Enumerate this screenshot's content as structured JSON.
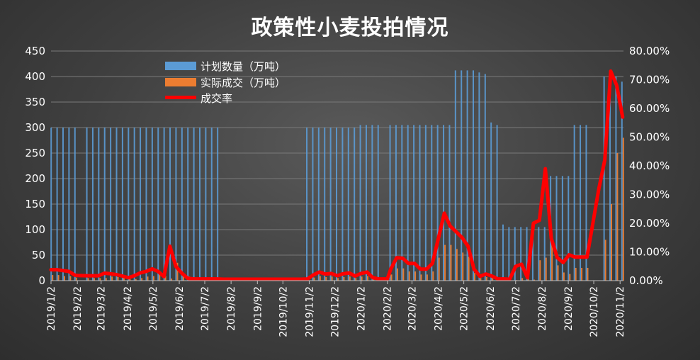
{
  "chart_data": {
    "type": "bar",
    "title": "政策性小麦投拍情况",
    "xlabel": "",
    "ylabel": "",
    "ylim": [
      0,
      450
    ],
    "y2lim": [
      0,
      80
    ],
    "y_ticks": [
      "0",
      "50",
      "100",
      "150",
      "200",
      "250",
      "300",
      "350",
      "400",
      "450"
    ],
    "y2_ticks": [
      "0.00%",
      "10.00%",
      "20.00%",
      "30.00%",
      "40.00%",
      "50.00%",
      "60.00%",
      "70.00%",
      "80.00%"
    ],
    "x_tick_labels": [
      "2019/1/2",
      "2019/2/2",
      "2019/3/2",
      "2019/4/2",
      "2019/5/2",
      "2019/6/2",
      "2019/7/2",
      "2019/8/2",
      "2019/9/2",
      "2019/10/2",
      "2019/11/2",
      "2019/12/2",
      "2020/1/2",
      "2020/2/2",
      "2020/3/2",
      "2020/4/2",
      "2020/5/2",
      "2020/6/2",
      "2020/7/2",
      "2020/8/2",
      "2020/9/2",
      "2020/10/2",
      "2020/11/2"
    ],
    "x_range": [
      "2019/1/2",
      "2020/11/6"
    ],
    "legend_position": "top-left",
    "colors": {
      "planned": "#5b9bd5",
      "actual": "#ed7d31",
      "rate": "#ff0000"
    },
    "series": [
      {
        "name": "计划数量（万吨）",
        "kind": "bar",
        "x": [
          "2019/1/3",
          "2019/1/10",
          "2019/1/17",
          "2019/1/24",
          "2019/1/31",
          "2019/2/14",
          "2019/2/21",
          "2019/2/28",
          "2019/3/7",
          "2019/3/14",
          "2019/3/21",
          "2019/3/28",
          "2019/4/4",
          "2019/4/11",
          "2019/4/18",
          "2019/4/25",
          "2019/5/2",
          "2019/5/9",
          "2019/5/16",
          "2019/5/23",
          "2019/5/30",
          "2019/6/6",
          "2019/6/13",
          "2019/6/20",
          "2019/6/27",
          "2019/7/4",
          "2019/7/11",
          "2019/7/18",
          "2019/10/31",
          "2019/11/7",
          "2019/11/14",
          "2019/11/21",
          "2019/11/28",
          "2019/12/5",
          "2019/12/12",
          "2019/12/19",
          "2019/12/26",
          "2020/1/2",
          "2020/1/9",
          "2020/1/16",
          "2020/1/23",
          "2020/2/6",
          "2020/2/13",
          "2020/2/20",
          "2020/2/27",
          "2020/3/5",
          "2020/3/12",
          "2020/3/19",
          "2020/3/26",
          "2020/4/2",
          "2020/4/9",
          "2020/4/16",
          "2020/4/23",
          "2020/4/30",
          "2020/5/7",
          "2020/5/14",
          "2020/5/21",
          "2020/5/28",
          "2020/6/4",
          "2020/6/11",
          "2020/6/18",
          "2020/6/25",
          "2020/7/2",
          "2020/7/9",
          "2020/7/16",
          "2020/7/23",
          "2020/7/30",
          "2020/8/6",
          "2020/8/13",
          "2020/8/20",
          "2020/8/27",
          "2020/9/3",
          "2020/9/10",
          "2020/9/17",
          "2020/9/24",
          "2020/10/15",
          "2020/10/22",
          "2020/10/29",
          "2020/11/5"
        ],
        "values": [
          300,
          300,
          300,
          300,
          300,
          300,
          300,
          300,
          300,
          300,
          300,
          300,
          300,
          300,
          300,
          300,
          300,
          300,
          300,
          300,
          300,
          300,
          300,
          300,
          300,
          300,
          300,
          300,
          300,
          300,
          300,
          300,
          300,
          300,
          300,
          300,
          300,
          305,
          305,
          305,
          305,
          305,
          305,
          305,
          305,
          305,
          305,
          305,
          305,
          305,
          305,
          305,
          412,
          412,
          412,
          412,
          408,
          405,
          310,
          305,
          110,
          105,
          105,
          105,
          105,
          105,
          105,
          105,
          205,
          205,
          205,
          205,
          305,
          305,
          305,
          400,
          400,
          400,
          390
        ]
      },
      {
        "name": "实际成交（万吨）",
        "kind": "bar",
        "x": [
          "2019/1/3",
          "2019/1/10",
          "2019/1/17",
          "2019/1/24",
          "2019/1/31",
          "2019/2/14",
          "2019/2/21",
          "2019/2/28",
          "2019/3/7",
          "2019/3/14",
          "2019/3/21",
          "2019/3/28",
          "2019/4/4",
          "2019/4/11",
          "2019/4/18",
          "2019/4/25",
          "2019/5/2",
          "2019/5/9",
          "2019/5/16",
          "2019/5/23",
          "2019/5/30",
          "2019/6/6",
          "2019/6/13",
          "2019/6/20",
          "2019/6/27",
          "2019/7/4",
          "2019/7/11",
          "2019/7/18",
          "2019/10/31",
          "2019/11/7",
          "2019/11/14",
          "2019/11/21",
          "2019/11/28",
          "2019/12/5",
          "2019/12/12",
          "2019/12/19",
          "2019/12/26",
          "2020/1/2",
          "2020/1/9",
          "2020/1/16",
          "2020/1/23",
          "2020/2/6",
          "2020/2/13",
          "2020/2/20",
          "2020/2/27",
          "2020/3/5",
          "2020/3/12",
          "2020/3/19",
          "2020/3/26",
          "2020/4/2",
          "2020/4/9",
          "2020/4/16",
          "2020/4/23",
          "2020/4/30",
          "2020/5/7",
          "2020/5/14",
          "2020/5/21",
          "2020/5/28",
          "2020/6/4",
          "2020/6/11",
          "2020/6/18",
          "2020/6/25",
          "2020/7/2",
          "2020/7/9",
          "2020/7/16",
          "2020/7/23",
          "2020/7/30",
          "2020/8/6",
          "2020/8/13",
          "2020/8/20",
          "2020/8/27",
          "2020/9/3",
          "2020/9/10",
          "2020/9/17",
          "2020/9/24",
          "2020/10/15",
          "2020/10/22",
          "2020/10/29",
          "2020/11/5"
        ],
        "values": [
          11,
          11,
          9,
          9,
          6,
          5,
          5,
          5,
          5,
          8,
          7,
          6,
          5,
          3,
          5,
          8,
          9,
          12,
          9,
          4,
          35,
          15,
          8,
          3,
          2,
          2,
          2,
          2,
          2,
          6,
          9,
          7,
          8,
          5,
          7,
          8,
          5,
          8,
          9,
          3,
          2,
          12,
          24,
          24,
          18,
          18,
          12,
          12,
          18,
          45,
          70,
          70,
          62,
          55,
          47,
          15,
          5,
          7,
          5,
          2,
          2,
          2,
          1,
          5,
          6,
          2,
          40,
          45,
          80,
          30,
          16,
          13,
          25,
          25,
          25,
          80,
          150,
          250,
          280
        ]
      },
      {
        "name": "成交率",
        "kind": "line",
        "axis": "right",
        "x": [
          "2019/1/2",
          "2019/1/9",
          "2019/1/16",
          "2019/1/23",
          "2019/1/30",
          "2019/2/2",
          "2019/2/13",
          "2019/2/20",
          "2019/2/27",
          "2019/3/6",
          "2019/3/13",
          "2019/3/20",
          "2019/3/27",
          "2019/4/3",
          "2019/4/10",
          "2019/4/17",
          "2019/4/24",
          "2019/5/1",
          "2019/5/8",
          "2019/5/15",
          "2019/5/22",
          "2019/5/29",
          "2019/6/5",
          "2019/6/12",
          "2019/6/19",
          "2019/6/26",
          "2019/7/3",
          "2019/7/10",
          "2019/7/17",
          "2019/7/24",
          "2019/8/2",
          "2019/9/2",
          "2019/10/2",
          "2019/10/24",
          "2019/10/31",
          "2019/11/7",
          "2019/11/14",
          "2019/11/21",
          "2019/11/28",
          "2019/12/5",
          "2019/12/12",
          "2019/12/19",
          "2019/12/26",
          "2020/1/2",
          "2020/1/9",
          "2020/1/16",
          "2020/1/23",
          "2020/2/2",
          "2020/2/6",
          "2020/2/13",
          "2020/2/20",
          "2020/2/27",
          "2020/3/5",
          "2020/3/12",
          "2020/3/19",
          "2020/3/26",
          "2020/4/2",
          "2020/4/9",
          "2020/4/16",
          "2020/4/23",
          "2020/4/30",
          "2020/5/7",
          "2020/5/14",
          "2020/5/21",
          "2020/5/28",
          "2020/6/4",
          "2020/6/11",
          "2020/6/18",
          "2020/6/25",
          "2020/7/2",
          "2020/7/9",
          "2020/7/16",
          "2020/7/23",
          "2020/7/30",
          "2020/8/6",
          "2020/8/13",
          "2020/8/20",
          "2020/8/27",
          "2020/9/3",
          "2020/9/10",
          "2020/9/17",
          "2020/9/24",
          "2020/10/1",
          "2020/10/8",
          "2020/10/15",
          "2020/10/22",
          "2020/10/29",
          "2020/11/5"
        ],
        "values": [
          3.8,
          3.8,
          3.5,
          3.2,
          1.9,
          1.8,
          1.7,
          1.7,
          1.7,
          2.6,
          2.4,
          2.1,
          1.6,
          1.0,
          1.7,
          2.7,
          3.2,
          4.1,
          3.2,
          1.4,
          12.0,
          5.0,
          2.6,
          0.8,
          0.6,
          0.6,
          0.6,
          0.6,
          0.6,
          0.5,
          0.5,
          0.5,
          0.5,
          0.5,
          0.6,
          2.0,
          3.0,
          2.3,
          2.5,
          1.7,
          2.4,
          2.7,
          1.6,
          2.5,
          3.0,
          1.0,
          0.6,
          0.6,
          4.0,
          8.0,
          7.8,
          6.0,
          6.0,
          4.0,
          4.0,
          6.0,
          14.7,
          23.5,
          19.0,
          17.0,
          15.0,
          12.0,
          4.0,
          1.5,
          2.3,
          1.6,
          0.6,
          0.6,
          0.5,
          5.0,
          5.7,
          1.0,
          20.0,
          21.0,
          39.0,
          14.7,
          8.0,
          6.3,
          9.0,
          8.2,
          8.2,
          8.2,
          20.0,
          32.0,
          42.0,
          73.0,
          68.0,
          57.0
        ]
      }
    ]
  }
}
